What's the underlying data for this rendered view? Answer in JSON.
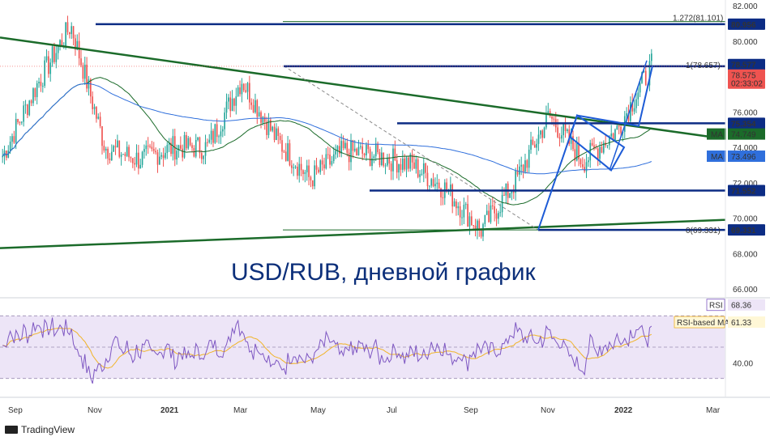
{
  "title": "USD/RUB, дневной график",
  "brand": "TradingView",
  "chart_data": [
    {
      "type": "candlestick",
      "instrument": "USD/RUB",
      "timeframe": "daily",
      "ylim": [
        65.5,
        82
      ],
      "y_ticks": [
        "82.000",
        "80.000",
        "78.000",
        "76.000",
        "74.000",
        "72.000",
        "70.000",
        "68.000",
        "66.000"
      ],
      "x_ticks": [
        "Sep",
        "Nov",
        "2021",
        "Mar",
        "May",
        "Jul",
        "Sep",
        "Nov",
        "2022",
        "Mar"
      ],
      "price_path": [
        [
          "Sep",
          73.5
        ],
        [
          "Oct",
          77.5
        ],
        [
          "Nov",
          80.9
        ],
        [
          "Dec",
          74.0
        ],
        [
          "2021",
          73.3
        ],
        [
          "Feb",
          74.0
        ],
        [
          "Mar",
          74.0
        ],
        [
          "Apr",
          77.8
        ],
        [
          "May",
          74.5
        ],
        [
          "Jun",
          72.2
        ],
        [
          "Jul",
          73.8
        ],
        [
          "Aug",
          73.5
        ],
        [
          "Sep",
          73.0
        ],
        [
          "Oct",
          71.6
        ],
        [
          "Nov",
          69.3
        ],
        [
          "Nov",
          72.0
        ],
        [
          "Dec",
          75.8
        ],
        [
          "Dec",
          73.2
        ],
        [
          "2022",
          75.0
        ],
        [
          "Jan",
          78.6
        ]
      ],
      "levels": [
        {
          "label": "80.956",
          "value": 80.956
        },
        {
          "label": "78.577",
          "value": 78.577
        },
        {
          "label": "75.354",
          "value": 75.354
        },
        {
          "label": "71.552",
          "value": 71.552
        },
        {
          "label": "69.331",
          "value": 69.331
        }
      ],
      "moving_averages": [
        {
          "name": "MA",
          "value": 74.749
        },
        {
          "name": "MA",
          "value": 73.496
        }
      ],
      "current_price": "78.575",
      "countdown": "02:33:02",
      "fib_labels": [
        "1.272(81.101)",
        "1(78.657)",
        "0(69.331)"
      ],
      "colors": {
        "up": "#26a69a",
        "down": "#ef5350",
        "trendline": "#1b6b2a",
        "level": "#0c2c84",
        "ma_fast": "#1b6b2a",
        "ma_slow": "#2f6fdc",
        "price_label": "#ef5350"
      }
    },
    {
      "type": "line",
      "indicator": "RSI",
      "ylim": [
        20,
        80
      ],
      "y_ticks": [
        "40.00"
      ],
      "series": [
        {
          "name": "RSI",
          "value": 68.36
        },
        {
          "name": "RSI-based MA",
          "value": 61.33
        }
      ],
      "colors": {
        "rsi": "#7e57c2",
        "ma": "#f0b429",
        "band": "#ede5f7"
      }
    }
  ]
}
